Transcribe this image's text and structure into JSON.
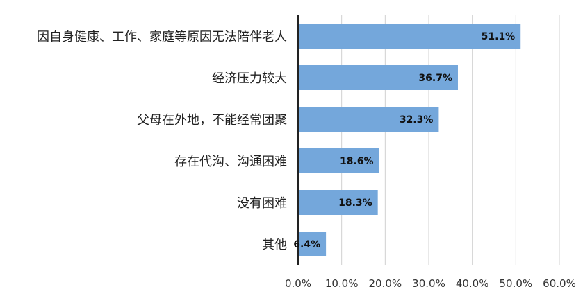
{
  "chart_data": {
    "type": "bar",
    "orientation": "horizontal",
    "categories": [
      "因自身健康、工作、家庭等原因无法陪伴老人",
      "经济压力较大",
      "父母在外地，不能经常团聚",
      "存在代沟、沟通困难",
      "没有困难",
      "其他"
    ],
    "values": [
      51.1,
      36.7,
      32.3,
      18.6,
      18.3,
      6.4
    ],
    "data_labels": [
      "51.1%",
      "36.7%",
      "32.3%",
      "18.6%",
      "18.3%",
      "6.4%"
    ],
    "title": "",
    "xlabel": "",
    "ylabel": "",
    "xlim": [
      0,
      60
    ],
    "x_ticks": [
      0,
      10,
      20,
      30,
      40,
      50,
      60
    ],
    "x_tick_labels": [
      "0.0%",
      "10.0%",
      "20.0%",
      "30.0%",
      "40.0%",
      "50.0%",
      "60.0%"
    ],
    "grid": true,
    "legend": "none",
    "colors": {
      "bar": "#74A7DB",
      "grid": "#d0d0d0",
      "axis": "#222222"
    }
  }
}
